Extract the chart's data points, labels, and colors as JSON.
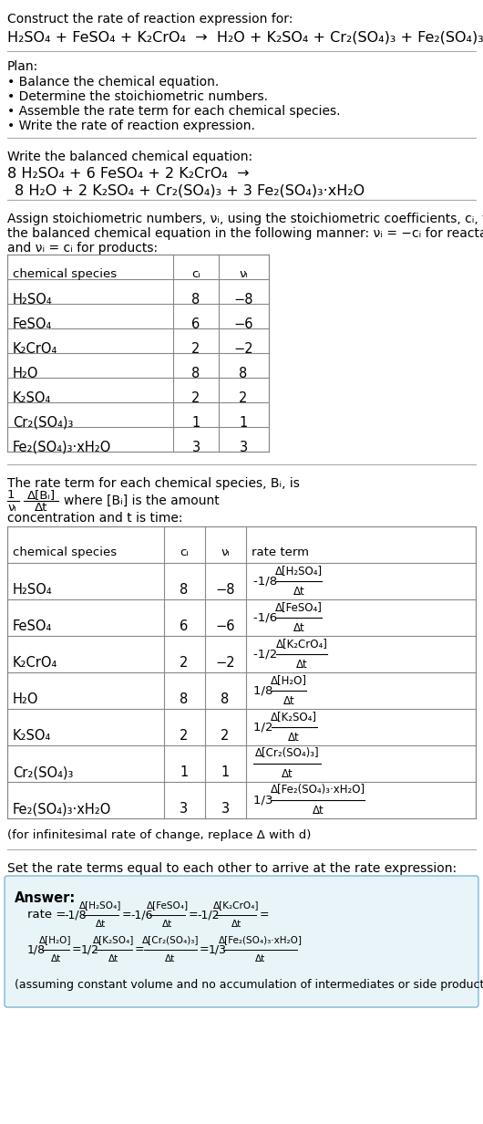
{
  "bg_color": "#ffffff",
  "text_color": "#000000",
  "title_line1": "Construct the rate of reaction expression for:",
  "plan_label": "Plan:",
  "plan_items": [
    "• Balance the chemical equation.",
    "• Determine the stoichiometric numbers.",
    "• Assemble the rate term for each chemical species.",
    "• Write the rate of reaction expression."
  ],
  "balanced_label": "Write the balanced chemical equation:",
  "stoich_text1": "Assign stoichiometric numbers, νᵢ, using the stoichiometric coefficients, cᵢ, from",
  "stoich_text2": "the balanced chemical equation in the following manner: νᵢ = −cᵢ for reactants",
  "stoich_text3": "and νᵢ = cᵢ for products:",
  "table1_headers": [
    "chemical species",
    "cᵢ",
    "νᵢ"
  ],
  "table1_rows": [
    [
      "H₂SO₄",
      "8",
      "−8"
    ],
    [
      "FeSO₄",
      "6",
      "−6"
    ],
    [
      "K₂CrO₄",
      "2",
      "−2"
    ],
    [
      "H₂O",
      "8",
      "8"
    ],
    [
      "K₂SO₄",
      "2",
      "2"
    ],
    [
      "Cr₂(SO₄)₃",
      "1",
      "1"
    ],
    [
      "Fe₂(SO₄)₃·xH₂O",
      "3",
      "3"
    ]
  ],
  "rate_text1": "The rate term for each chemical species, Bᵢ, is",
  "rate_text2": "where [Bᵢ] is the amount",
  "rate_text3": "concentration and t is time:",
  "table2_headers": [
    "chemical species",
    "cᵢ",
    "νᵢ",
    "rate term"
  ],
  "table2_rows": [
    [
      "H₂SO₄",
      "8",
      "−8"
    ],
    [
      "FeSO₄",
      "6",
      "−6"
    ],
    [
      "K₂CrO₄",
      "2",
      "−2"
    ],
    [
      "H₂O",
      "8",
      "8"
    ],
    [
      "K₂SO₄",
      "2",
      "2"
    ],
    [
      "Cr₂(SO₄)₃",
      "1",
      "1"
    ],
    [
      "Fe₂(SO₄)₃·xH₂O",
      "3",
      "3"
    ]
  ],
  "infinitesimal_note": "(for infinitesimal rate of change, replace Δ with d)",
  "set_rate_label": "Set the rate terms equal to each other to arrive at the rate expression:",
  "answer_label": "Answer:",
  "answer_box_color": "#e8f4f8",
  "answer_box_border": "#7ab8d4",
  "answer_note": "(assuming constant volume and no accumulation of intermediates or side products)"
}
